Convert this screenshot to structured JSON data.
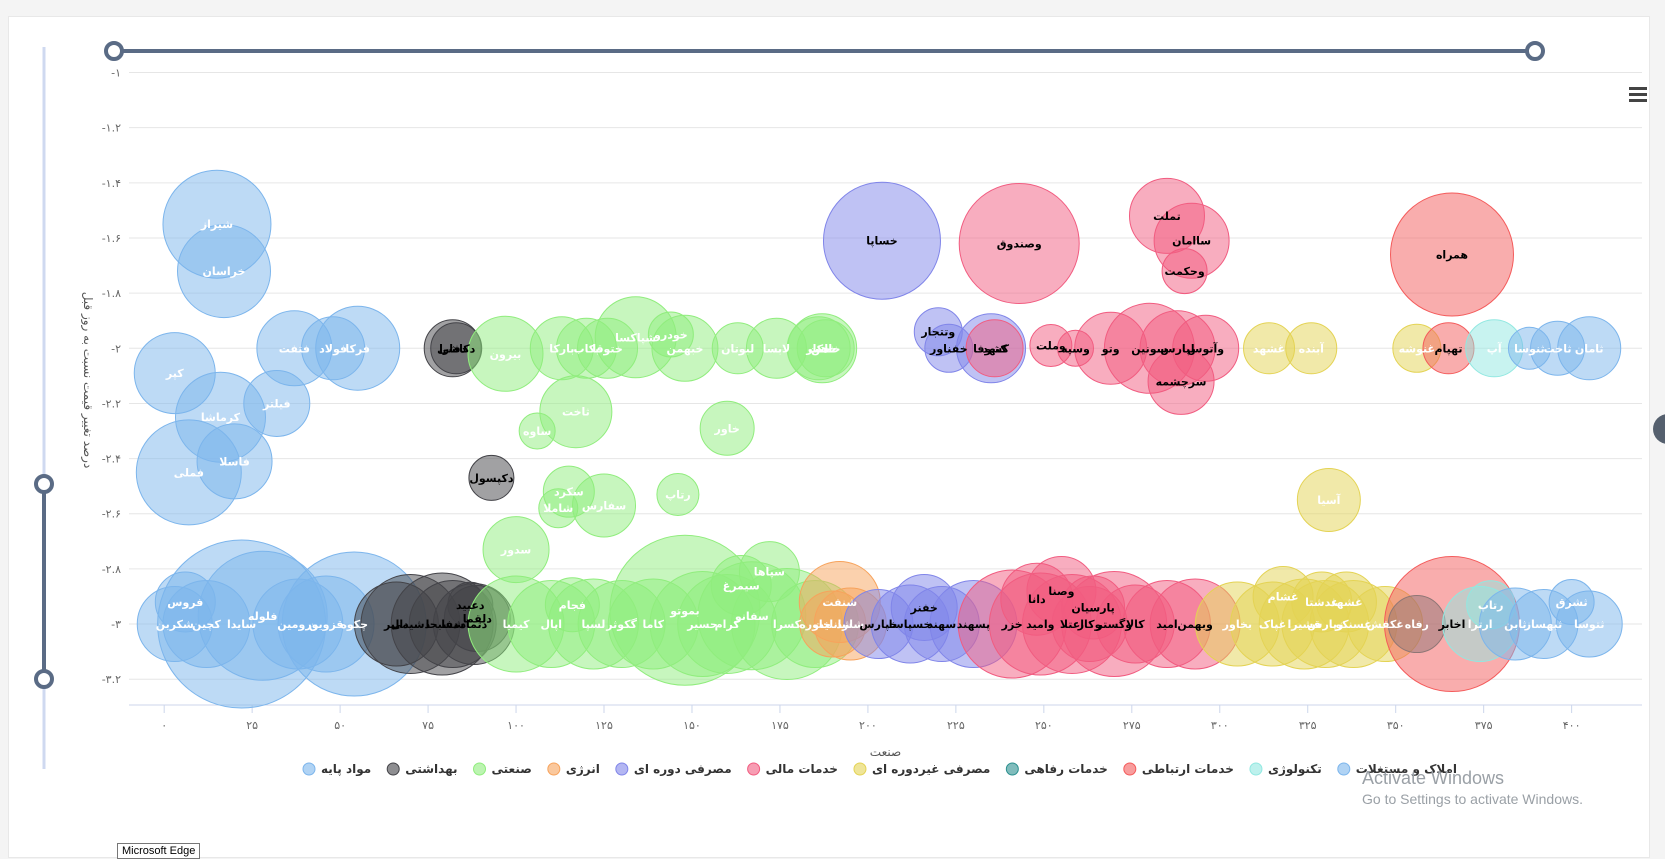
{
  "chart_data": {
    "type": "bubble",
    "xlabel": "صنعت",
    "ylabel": "درصد تغییر قیمت نسبت به روز قبل",
    "xlim": [
      -10,
      420
    ],
    "ylim": [
      -3.25,
      -0.98
    ],
    "xticks": [
      0,
      25,
      50,
      75,
      100,
      125,
      150,
      175,
      200,
      225,
      250,
      275,
      300,
      325,
      350,
      375,
      400
    ],
    "xtick_labels": [
      "۰",
      "۲۵",
      "۵۰",
      "۷۵",
      "۱۰۰",
      "۱۲۵",
      "۱۵۰",
      "۱۷۵",
      "۲۰۰",
      "۲۲۵",
      "۲۵۰",
      "۲۷۵",
      "۳۰۰",
      "۳۲۵",
      "۳۵۰",
      "۳۷۵",
      "۴۰۰"
    ],
    "yticks": [
      -1,
      -1.2,
      -1.4,
      -1.6,
      -1.8,
      -2,
      -2.2,
      -2.4,
      -2.6,
      -2.8,
      -3,
      -3.2
    ],
    "ytick_labels": [
      "-۱",
      "-۱.۲",
      "-۱.۴",
      "-۱.۶",
      "-۱.۸",
      "-۲",
      "-۲.۲",
      "-۲.۴",
      "-۲.۶",
      "-۲.۸",
      "-۳",
      "-۳.۲"
    ],
    "grid": true,
    "legend_position": "bottom",
    "series": [
      {
        "name": "مواد پایه",
        "color": "#7cb5ec",
        "points": [
          {
            "x": 15,
            "y": -1.55,
            "r": 3.6,
            "label": "شیراز"
          },
          {
            "x": 17,
            "y": -1.72,
            "r": 3.1,
            "label": "خراسان"
          },
          {
            "x": 3,
            "y": -2.09,
            "r": 2.7,
            "label": "کپر"
          },
          {
            "x": 16,
            "y": -2.25,
            "r": 3.0,
            "label": "کرماشا"
          },
          {
            "x": 32,
            "y": -2.2,
            "r": 2.2,
            "label": "فیلتر"
          },
          {
            "x": 7,
            "y": -2.45,
            "r": 3.5,
            "label": "فملی"
          },
          {
            "x": 20,
            "y": -2.41,
            "r": 2.5,
            "label": "فاسلا"
          },
          {
            "x": 37,
            "y": -2.0,
            "r": 2.5,
            "label": "فتفت"
          },
          {
            "x": 48,
            "y": -2.0,
            "r": 2.1,
            "label": "فولاد"
          },
          {
            "x": 55,
            "y": -2.0,
            "r": 2.8,
            "label": "فرکا"
          },
          {
            "x": 6,
            "y": -2.92,
            "r": 2.0,
            "label": "فروس"
          },
          {
            "x": 3,
            "y": -3.0,
            "r": 2.5,
            "label": "شکربن"
          },
          {
            "x": 12,
            "y": -3.0,
            "r": 2.9,
            "label": "کچین"
          },
          {
            "x": 22,
            "y": -3.0,
            "r": 5.6,
            "label": "سایدا"
          },
          {
            "x": 28,
            "y": -2.97,
            "r": 4.3,
            "label": "فلوله"
          },
          {
            "x": 38,
            "y": -3.0,
            "r": 3.0,
            "label": "ورومین"
          },
          {
            "x": 46,
            "y": -3.0,
            "r": 3.2,
            "label": "قزوین"
          },
          {
            "x": 54,
            "y": -3.0,
            "r": 4.8,
            "label": "چکوه"
          }
        ]
      },
      {
        "name": "بهداشتی",
        "color": "#434348",
        "points": [
          {
            "x": 82,
            "y": -2.0,
            "r": 1.9,
            "label": "دفارا"
          },
          {
            "x": 83,
            "y": -2.0,
            "r": 1.7,
            "label": "دکاشی"
          },
          {
            "x": 93,
            "y": -2.47,
            "r": 1.5,
            "label": "دکپسول"
          },
          {
            "x": 66,
            "y": -3.0,
            "r": 2.8,
            "label": "دالبر"
          },
          {
            "x": 70,
            "y": -3.0,
            "r": 3.3,
            "label": "دشیمی"
          },
          {
            "x": 79,
            "y": -3.0,
            "r": 3.4,
            "label": "دسبحا"
          },
          {
            "x": 87,
            "y": -2.93,
            "r": 1.5,
            "label": "دعبید"
          },
          {
            "x": 82,
            "y": -3.0,
            "r": 2.9,
            "label": "شفا"
          },
          {
            "x": 88,
            "y": -3.0,
            "r": 2.7,
            "label": "دتماد"
          },
          {
            "x": 89,
            "y": -2.98,
            "r": 2.2,
            "label": "دلقما"
          }
        ]
      },
      {
        "name": "صنعتی",
        "color": "#90ed7d",
        "points": [
          {
            "x": 97,
            "y": -2.02,
            "r": 2.5,
            "label": "بیرون"
          },
          {
            "x": 113,
            "y": -2.0,
            "r": 2.1,
            "label": "بارکا"
          },
          {
            "x": 120,
            "y": -2.0,
            "r": 2.0,
            "label": "بکاب"
          },
          {
            "x": 126,
            "y": -2.0,
            "r": 2.0,
            "label": "ختوقا"
          },
          {
            "x": 134,
            "y": -1.96,
            "r": 2.7,
            "label": "شپاکسا"
          },
          {
            "x": 144,
            "y": -1.95,
            "r": 1.5,
            "label": "خودرو"
          },
          {
            "x": 148,
            "y": -2.0,
            "r": 2.2,
            "label": "خبهمن"
          },
          {
            "x": 163,
            "y": -2.0,
            "r": 1.7,
            "label": "لبوتان"
          },
          {
            "x": 174,
            "y": -2.0,
            "r": 2.0,
            "label": "لابسا"
          },
          {
            "x": 188,
            "y": -2.0,
            "r": 1.9,
            "label": "خاهن"
          },
          {
            "x": 187,
            "y": -2.0,
            "r": 2.3,
            "label": "خلنت"
          },
          {
            "x": 186,
            "y": -2.0,
            "r": 2.1,
            "label": "خکار"
          },
          {
            "x": 117,
            "y": -2.23,
            "r": 2.4,
            "label": "ثاخت"
          },
          {
            "x": 106,
            "y": -2.3,
            "r": 1.2,
            "label": "ساوه"
          },
          {
            "x": 160,
            "y": -2.29,
            "r": 1.8,
            "label": "خاور"
          },
          {
            "x": 115,
            "y": -2.52,
            "r": 1.7,
            "label": "سکرد"
          },
          {
            "x": 146,
            "y": -2.53,
            "r": 1.4,
            "label": "رتاپ"
          },
          {
            "x": 112,
            "y": -2.58,
            "r": 1.3,
            "label": "شاملا"
          },
          {
            "x": 125,
            "y": -2.57,
            "r": 2.1,
            "label": "سفارس"
          },
          {
            "x": 100,
            "y": -2.73,
            "r": 2.2,
            "label": "سدور"
          },
          {
            "x": 100,
            "y": -3.0,
            "r": 3.2,
            "label": "کیمیا"
          },
          {
            "x": 110,
            "y": -3.0,
            "r": 2.9,
            "label": "اپال"
          },
          {
            "x": 116,
            "y": -2.93,
            "r": 1.8,
            "label": "فجام"
          },
          {
            "x": 122,
            "y": -3.0,
            "r": 3.0,
            "label": "لسپا"
          },
          {
            "x": 130,
            "y": -3.0,
            "r": 2.9,
            "label": "گکوثر"
          },
          {
            "x": 139,
            "y": -3.0,
            "r": 3.0,
            "label": "کاما"
          },
          {
            "x": 148,
            "y": -2.95,
            "r": 5.0,
            "label": "بموتو"
          },
          {
            "x": 153,
            "y": -3.0,
            "r": 3.5,
            "label": "حسیر"
          },
          {
            "x": 160,
            "y": -3.0,
            "r": 3.3,
            "label": "کرام"
          },
          {
            "x": 167,
            "y": -2.97,
            "r": 3.6,
            "label": "سفانو"
          },
          {
            "x": 177,
            "y": -3.0,
            "r": 3.7,
            "label": "کسرا"
          },
          {
            "x": 164,
            "y": -2.86,
            "r": 2.0,
            "label": "سیمرغ"
          },
          {
            "x": 172,
            "y": -2.81,
            "r": 2.0,
            "label": "سپاها"
          },
          {
            "x": 185,
            "y": -3.0,
            "r": 2.9,
            "label": "خاوره"
          }
        ]
      },
      {
        "name": "انرژی",
        "color": "#f7a35c",
        "points": [
          {
            "x": 192,
            "y": -2.92,
            "r": 2.7,
            "label": "شنفت"
          },
          {
            "x": 195,
            "y": -3.0,
            "r": 2.4,
            "label": "شلرد"
          },
          {
            "x": 190,
            "y": -3.0,
            "r": 2.2,
            "label": "شانلیت"
          }
        ]
      },
      {
        "name": "مصرفی دوره ای",
        "color": "#8085e9",
        "points": [
          {
            "x": 204,
            "y": -1.61,
            "r": 3.9,
            "label": "خساپا"
          },
          {
            "x": 220,
            "y": -1.94,
            "r": 1.6,
            "label": "وتتجار"
          },
          {
            "x": 223,
            "y": -2.0,
            "r": 1.6,
            "label": "خفناور"
          },
          {
            "x": 235,
            "y": -2.0,
            "r": 2.3,
            "label": "کشوفا"
          },
          {
            "x": 203,
            "y": -3.0,
            "r": 2.3,
            "label": "خپارس"
          },
          {
            "x": 212,
            "y": -3.0,
            "r": 2.6,
            "label": "خسپاسا"
          },
          {
            "x": 216,
            "y": -2.94,
            "r": 2.2,
            "label": "خفنر"
          },
          {
            "x": 221,
            "y": -3.0,
            "r": 2.5,
            "label": "سهند"
          },
          {
            "x": 230,
            "y": -3.0,
            "r": 2.9,
            "label": "پسهند"
          }
        ]
      },
      {
        "name": "خدمات مالی",
        "color": "#f15c80",
        "points": [
          {
            "x": 243,
            "y": -1.62,
            "r": 4.0,
            "label": "وصندوق"
          },
          {
            "x": 285,
            "y": -1.52,
            "r": 2.5,
            "label": "تملت"
          },
          {
            "x": 292,
            "y": -1.61,
            "r": 2.5,
            "label": "ساامان"
          },
          {
            "x": 290,
            "y": -1.72,
            "r": 1.5,
            "label": "وحکمت"
          },
          {
            "x": 236,
            "y": -2.0,
            "r": 1.9,
            "label": "کنهد"
          },
          {
            "x": 252,
            "y": -1.99,
            "r": 1.4,
            "label": "وملت"
          },
          {
            "x": 259,
            "y": -2.0,
            "r": 1.2,
            "label": "وسپه"
          },
          {
            "x": 269,
            "y": -2.0,
            "r": 2.4,
            "label": "وتو"
          },
          {
            "x": 280,
            "y": -2.0,
            "r": 3.0,
            "label": "سونین"
          },
          {
            "x": 288,
            "y": -2.0,
            "r": 2.5,
            "label": "لپارس"
          },
          {
            "x": 296,
            "y": -2.0,
            "r": 2.2,
            "label": "وآتوس"
          },
          {
            "x": 289,
            "y": -2.12,
            "r": 2.2,
            "label": "سرچشمه"
          },
          {
            "x": 241,
            "y": -3.0,
            "r": 3.6,
            "label": "خزر"
          },
          {
            "x": 249,
            "y": -3.0,
            "r": 3.4,
            "label": "وامید"
          },
          {
            "x": 255,
            "y": -2.88,
            "r": 2.3,
            "label": "وصنا"
          },
          {
            "x": 248,
            "y": -2.91,
            "r": 2.4,
            "label": "دانا"
          },
          {
            "x": 258,
            "y": -3.0,
            "r": 3.3,
            "label": "اعتلا"
          },
          {
            "x": 264,
            "y": -2.94,
            "r": 2.1,
            "label": "پارسیان"
          },
          {
            "x": 263,
            "y": -3.0,
            "r": 2.5,
            "label": "وکار"
          },
          {
            "x": 270,
            "y": -3.0,
            "r": 3.5,
            "label": "وگستر"
          },
          {
            "x": 276,
            "y": -3.0,
            "r": 2.6,
            "label": "کالا"
          },
          {
            "x": 285,
            "y": -3.0,
            "r": 2.9,
            "label": "امید"
          },
          {
            "x": 293,
            "y": -3.0,
            "r": 3.0,
            "label": "وبهمن"
          }
        ]
      },
      {
        "name": "مصرفی غیردوره ای",
        "color": "#e4d354",
        "points": [
          {
            "x": 314,
            "y": -2.0,
            "r": 1.7,
            "label": "غشهد"
          },
          {
            "x": 326,
            "y": -2.0,
            "r": 1.7,
            "label": "آبنده"
          },
          {
            "x": 356,
            "y": -2.0,
            "r": 1.6,
            "label": "غنوشه"
          },
          {
            "x": 331,
            "y": -2.55,
            "r": 2.1,
            "label": "آسیا"
          },
          {
            "x": 305,
            "y": -3.0,
            "r": 2.8,
            "label": "بخاور"
          },
          {
            "x": 315,
            "y": -3.0,
            "r": 2.8,
            "label": "غپاک"
          },
          {
            "x": 318,
            "y": -2.9,
            "r": 2.0,
            "label": "غشام"
          },
          {
            "x": 324,
            "y": -3.0,
            "r": 3.0,
            "label": "قشیرا"
          },
          {
            "x": 330,
            "y": -3.0,
            "r": 2.9,
            "label": "زپارس"
          },
          {
            "x": 329,
            "y": -2.92,
            "r": 2.0,
            "label": "غدشتا"
          },
          {
            "x": 336,
            "y": -2.92,
            "r": 2.0,
            "label": "غشهد"
          },
          {
            "x": 338,
            "y": -3.0,
            "r": 2.9,
            "label": "غسنکو"
          },
          {
            "x": 347,
            "y": -3.0,
            "r": 2.5,
            "label": "غکفش"
          }
        ]
      },
      {
        "name": "خدمات رفاهی",
        "color": "#2b908f",
        "points": [
          {
            "x": 356,
            "y": -3.0,
            "r": 1.9,
            "label": "رفاه"
          }
        ]
      },
      {
        "name": "خدمات ارتباطی",
        "color": "#f45b5b",
        "points": [
          {
            "x": 366,
            "y": -1.66,
            "r": 4.1,
            "label": "همراه"
          },
          {
            "x": 365,
            "y": -2.0,
            "r": 1.7,
            "label": "تهپام"
          },
          {
            "x": 366,
            "y": -3.0,
            "r": 4.5,
            "label": "اخابر"
          }
        ]
      },
      {
        "name": "تکنولوژی",
        "color": "#91e8e1",
        "points": [
          {
            "x": 378,
            "y": -2.0,
            "r": 1.9,
            "label": "آپ"
          },
          {
            "x": 377,
            "y": -2.93,
            "r": 1.6,
            "label": "رتاپ"
          },
          {
            "x": 374,
            "y": -3.0,
            "r": 2.5,
            "label": "ارترا"
          }
        ]
      },
      {
        "name": "املاک و مستغلات",
        "color": "#7cb5ec",
        "points": [
          {
            "x": 388,
            "y": -2.0,
            "r": 1.4,
            "label": "ثنوسا"
          },
          {
            "x": 396,
            "y": -2.0,
            "r": 1.8,
            "label": "ثاخت"
          },
          {
            "x": 405,
            "y": -2.0,
            "r": 2.1,
            "label": "ثامان"
          },
          {
            "x": 384,
            "y": -3.0,
            "r": 2.4,
            "label": "ثابن"
          },
          {
            "x": 392,
            "y": -3.0,
            "r": 2.3,
            "label": "ثبهساز"
          },
          {
            "x": 400,
            "y": -2.92,
            "r": 1.5,
            "label": "ثشرق"
          },
          {
            "x": 405,
            "y": -3.0,
            "r": 2.2,
            "label": "ثتوسا"
          }
        ]
      }
    ]
  },
  "navigator_color": "#5a6b85",
  "watermark": {
    "line1": "Activate Windows",
    "line2": "Go to Settings to activate Windows."
  },
  "taskbar_tooltip": "Microsoft Edge"
}
